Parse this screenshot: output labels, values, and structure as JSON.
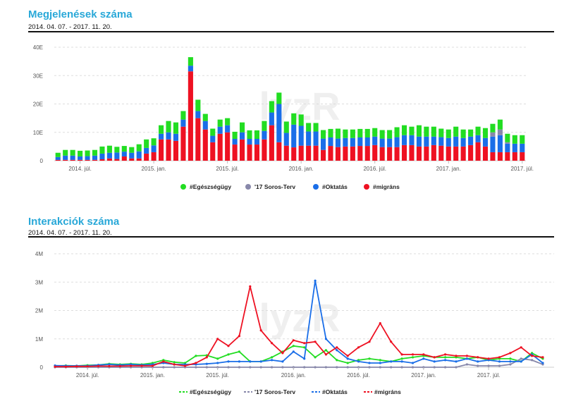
{
  "chart1": {
    "title": "Megjelenések száma",
    "subtitle": "2014. 04. 07. - 2017. 11. 20."
  },
  "chart2": {
    "title": "Interakciók száma",
    "subtitle": "2014. 04. 07. - 2017. 11. 20."
  },
  "watermark": "lyzR",
  "colors": {
    "egeszsegugy": "#22dd22",
    "soros": "#8888aa",
    "oktatas": "#1a6ee8",
    "migrans": "#ee1122",
    "title": "#29a8d8"
  },
  "chart_data": [
    {
      "type": "bar",
      "stacked": true,
      "title": "Megjelenések száma",
      "subtitle": "2014. 04. 07. - 2017. 11. 20.",
      "yticks": [
        "0",
        "10E",
        "20E",
        "30E",
        "40E"
      ],
      "ylim": [
        0,
        40
      ],
      "xticks": [
        {
          "label": "2014. júl.",
          "index": 3
        },
        {
          "label": "2015. jan.",
          "index": 13
        },
        {
          "label": "2015. júl.",
          "index": 23
        },
        {
          "label": "2016. jan.",
          "index": 33
        },
        {
          "label": "2016. júl.",
          "index": 43
        },
        {
          "label": "2017. jan.",
          "index": 53
        },
        {
          "label": "2017. júl.",
          "index": 63
        }
      ],
      "legend_position": "bottom",
      "series": [
        {
          "name": "#Egészségügy",
          "color": "#22dd22",
          "values": [
            1.5,
            2,
            2,
            2,
            2,
            2,
            2.5,
            2.5,
            2,
            2,
            2,
            2.5,
            3,
            2.5,
            3,
            4,
            4,
            3,
            3,
            4,
            2.5,
            2.5,
            2.5,
            2.5,
            2.5,
            3.5,
            3,
            3,
            3.5,
            4,
            4,
            4,
            4,
            4,
            3,
            3,
            3,
            3,
            3.5,
            3,
            3,
            3,
            3,
            3,
            3,
            3,
            3.5,
            3.5,
            3,
            4,
            3.5,
            3.5,
            3,
            3,
            3.5,
            3,
            2.5,
            3,
            3.5,
            3,
            3.5,
            3,
            3,
            3
          ]
        },
        {
          "name": "'17 Soros-Terv",
          "color": "#8888aa",
          "values": [
            0,
            0,
            0,
            0,
            0,
            0,
            0,
            0,
            0,
            0,
            0,
            0,
            0,
            0,
            0,
            0,
            0,
            0,
            0,
            0,
            0,
            0,
            0,
            0,
            0,
            0,
            0,
            0,
            0,
            0,
            0,
            0,
            0,
            0,
            0,
            0,
            0,
            0,
            0,
            0,
            0,
            0,
            0,
            0,
            0,
            0,
            0,
            0,
            0,
            0,
            0,
            0,
            0,
            0,
            0,
            0,
            0,
            0,
            0,
            1.5,
            2,
            0.5,
            0,
            0
          ]
        },
        {
          "name": "#Oktatás",
          "color": "#1a6ee8",
          "values": [
            1,
            1.5,
            1.5,
            1.2,
            1.3,
            1.5,
            2,
            2,
            2.3,
            1.7,
            2,
            2.5,
            2,
            2.4,
            2,
            2.5,
            2.5,
            2.5,
            2,
            2.5,
            3,
            2.3,
            2.5,
            2.5,
            2,
            2.5,
            2,
            2,
            3,
            4.5,
            13.5,
            4.5,
            8,
            7,
            5,
            5,
            4,
            3,
            3,
            3,
            3,
            3,
            3,
            3,
            3,
            3,
            3.5,
            3.5,
            3.5,
            3.5,
            3.5,
            3,
            3,
            3,
            3.5,
            3,
            3,
            2.5,
            3,
            5.5,
            6,
            3,
            3,
            3
          ]
        },
        {
          "name": "#migráns",
          "color": "#ee1122",
          "values": [
            0.3,
            0.3,
            0.3,
            0.3,
            0.3,
            0.3,
            0.5,
            0.8,
            0.6,
            1.5,
            0.8,
            0.8,
            2.5,
            3,
            7.5,
            7.5,
            7,
            12,
            31.5,
            15,
            11,
            6.5,
            9.5,
            10,
            5.7,
            7.5,
            5.7,
            5.7,
            7.5,
            12.5,
            6.5,
            5.3,
            4.7,
            5.3,
            5.3,
            5.3,
            3.8,
            5.2,
            4.8,
            5,
            5,
            5.2,
            5.2,
            5.5,
            4.8,
            4.8,
            4.8,
            5.5,
            5.5,
            5,
            5,
            5.5,
            5.3,
            5,
            5,
            5,
            5.5,
            6.5,
            5,
            3,
            3,
            3,
            3,
            3
          ]
        }
      ]
    },
    {
      "type": "line",
      "title": "Interakciók száma",
      "subtitle": "2014. 04. 07. - 2017. 11. 20.",
      "yticks": [
        "0",
        "1M",
        "2M",
        "3M",
        "4M"
      ],
      "ylim": [
        0,
        4
      ],
      "xticks": [
        {
          "label": "2014. júl.",
          "index": 3
        },
        {
          "label": "2015. jan.",
          "index": 9
        },
        {
          "label": "2015. júl.",
          "index": 15
        },
        {
          "label": "2016. jan.",
          "index": 22
        },
        {
          "label": "2016. júl.",
          "index": 28
        },
        {
          "label": "2017. jan.",
          "index": 34
        },
        {
          "label": "2017. júl.",
          "index": 40
        }
      ],
      "legend_position": "bottom",
      "series": [
        {
          "name": "#Egészségügy",
          "color": "#22dd22",
          "values": [
            0.05,
            0.06,
            0.05,
            0.07,
            0.08,
            0.12,
            0.1,
            0.12,
            0.1,
            0.15,
            0.25,
            0.18,
            0.15,
            0.4,
            0.42,
            0.3,
            0.45,
            0.55,
            0.2,
            0.2,
            0.35,
            0.55,
            0.75,
            0.7,
            0.35,
            0.6,
            0.25,
            0.15,
            0.25,
            0.3,
            0.25,
            0.2,
            0.3,
            0.35,
            0.4,
            0.35,
            0.35,
            0.35,
            0.3,
            0.35,
            0.25,
            0.3,
            0.3,
            0.2,
            0.5,
            0.3
          ]
        },
        {
          "name": "'17 Soros-Terv",
          "color": "#8888aa",
          "values": [
            0,
            0,
            0,
            0,
            0,
            0,
            0,
            0,
            0,
            0,
            0,
            0,
            0,
            0,
            0,
            0,
            0,
            0,
            0,
            0,
            0,
            0,
            0,
            0,
            0,
            0,
            0,
            0,
            0,
            0,
            0,
            0,
            0,
            0,
            0,
            0,
            0,
            0,
            0.1,
            0.05,
            0.05,
            0.05,
            0.1,
            0.3,
            0.25,
            0.1
          ]
        },
        {
          "name": "#Oktatás",
          "color": "#1a6ee8",
          "values": [
            0.06,
            0.05,
            0.05,
            0.05,
            0.08,
            0.1,
            0.08,
            0.1,
            0.08,
            0.1,
            0.15,
            0.1,
            0.1,
            0.1,
            0.12,
            0.15,
            0.2,
            0.2,
            0.2,
            0.2,
            0.25,
            0.2,
            0.55,
            0.3,
            3.05,
            1.0,
            0.6,
            0.3,
            0.2,
            0.15,
            0.15,
            0.2,
            0.2,
            0.15,
            0.3,
            0.2,
            0.25,
            0.2,
            0.3,
            0.2,
            0.25,
            0.2,
            0.2,
            0.2,
            0.45,
            0.15
          ]
        },
        {
          "name": "#migráns",
          "color": "#ee1122",
          "values": [
            0.02,
            0.02,
            0.03,
            0.03,
            0.04,
            0.04,
            0.04,
            0.05,
            0.05,
            0.05,
            0.2,
            0.1,
            0.05,
            0.15,
            0.35,
            1.0,
            0.75,
            1.1,
            2.85,
            1.3,
            0.85,
            0.5,
            0.95,
            0.85,
            0.9,
            0.45,
            0.7,
            0.4,
            0.7,
            0.9,
            1.55,
            0.9,
            0.45,
            0.45,
            0.45,
            0.35,
            0.45,
            0.4,
            0.4,
            0.35,
            0.3,
            0.35,
            0.5,
            0.7,
            0.4,
            0.35
          ]
        }
      ]
    }
  ]
}
